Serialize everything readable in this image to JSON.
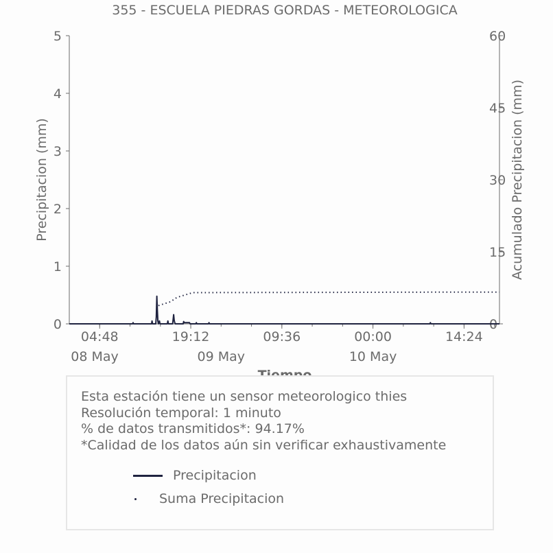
{
  "chart_data": {
    "type": "line",
    "title": "355 - ESCUELA PIEDRAS GORDAS - METEOROLOGICA",
    "xlabel": "Tiempo",
    "ylabel_left": "Precipitacion (mm)",
    "ylabel_right": "Acumulado Precipitacion (mm)",
    "ylim_left": [
      0,
      5
    ],
    "ylim_right": [
      0,
      60
    ],
    "yticks_left": [
      "0",
      "1",
      "2",
      "3",
      "4",
      "5"
    ],
    "yticks_right": [
      "0",
      "15",
      "30",
      "45",
      "60"
    ],
    "x_tick_labels": [
      "04:48",
      "19:12",
      "09:36",
      "00:00",
      "14:24"
    ],
    "x_date_labels": [
      "08 May",
      "09 May",
      "10 May"
    ],
    "x_range": [
      "2024-05-08 00:00",
      "2024-05-10 20:00"
    ],
    "grid": false,
    "series": [
      {
        "name": "Precipitacion",
        "style": "solid",
        "color": "#1f2340",
        "x": [
          "2024-05-08 00:00",
          "2024-05-08 10:00",
          "2024-05-08 10:05",
          "2024-05-08 10:10",
          "2024-05-08 13:00",
          "2024-05-08 13:05",
          "2024-05-08 13:10",
          "2024-05-08 13:40",
          "2024-05-08 13:45",
          "2024-05-08 13:50",
          "2024-05-08 13:55",
          "2024-05-08 14:00",
          "2024-05-08 14:05",
          "2024-05-08 14:10",
          "2024-05-08 14:15",
          "2024-05-08 14:20",
          "2024-05-08 15:30",
          "2024-05-08 15:35",
          "2024-05-08 15:40",
          "2024-05-08 16:20",
          "2024-05-08 16:25",
          "2024-05-08 16:30",
          "2024-05-08 16:35",
          "2024-05-08 16:40",
          "2024-05-08 16:45",
          "2024-05-08 18:00",
          "2024-05-08 18:05",
          "2024-05-08 18:10",
          "2024-05-08 19:00",
          "2024-05-08 19:05",
          "2024-05-08 20:00",
          "2024-05-08 20:05",
          "2024-05-08 20:10",
          "2024-05-08 22:00",
          "2024-05-08 22:05",
          "2024-05-08 22:10",
          "2024-05-10 09:00",
          "2024-05-10 09:05",
          "2024-05-10 09:10",
          "2024-05-10 20:00"
        ],
        "values": [
          0,
          0,
          0.02,
          0,
          0,
          0.05,
          0,
          0,
          0.12,
          0.48,
          0.25,
          0.05,
          0,
          0.03,
          0.05,
          0,
          0,
          0.05,
          0,
          0,
          0.08,
          0.16,
          0.06,
          0.02,
          0,
          0,
          0.04,
          0.02,
          0.02,
          0,
          0,
          0.02,
          0,
          0,
          0.02,
          0,
          0,
          0.02,
          0,
          0
        ]
      },
      {
        "name": "Suma Precipitacion",
        "style": "dotted",
        "color": "#1f2340",
        "x": [
          "2024-05-08 14:05",
          "2024-05-08 16:00",
          "2024-05-08 17:00",
          "2024-05-08 19:30",
          "2024-05-10 09:00",
          "2024-05-10 20:00"
        ],
        "values": [
          3.8,
          4.6,
          5.5,
          6.5,
          6.6,
          6.6
        ]
      }
    ]
  },
  "info": {
    "lines": [
      "Esta estación tiene un sensor meteorologico thies",
      "Resolución temporal: 1 minuto",
      "% de datos transmitidos*: 94.17%",
      "*Calidad de los datos aún sin verificar exhaustivamente"
    ],
    "legend": {
      "precip_label": "Precipitacion",
      "suma_label": "Suma Precipitacion"
    }
  }
}
